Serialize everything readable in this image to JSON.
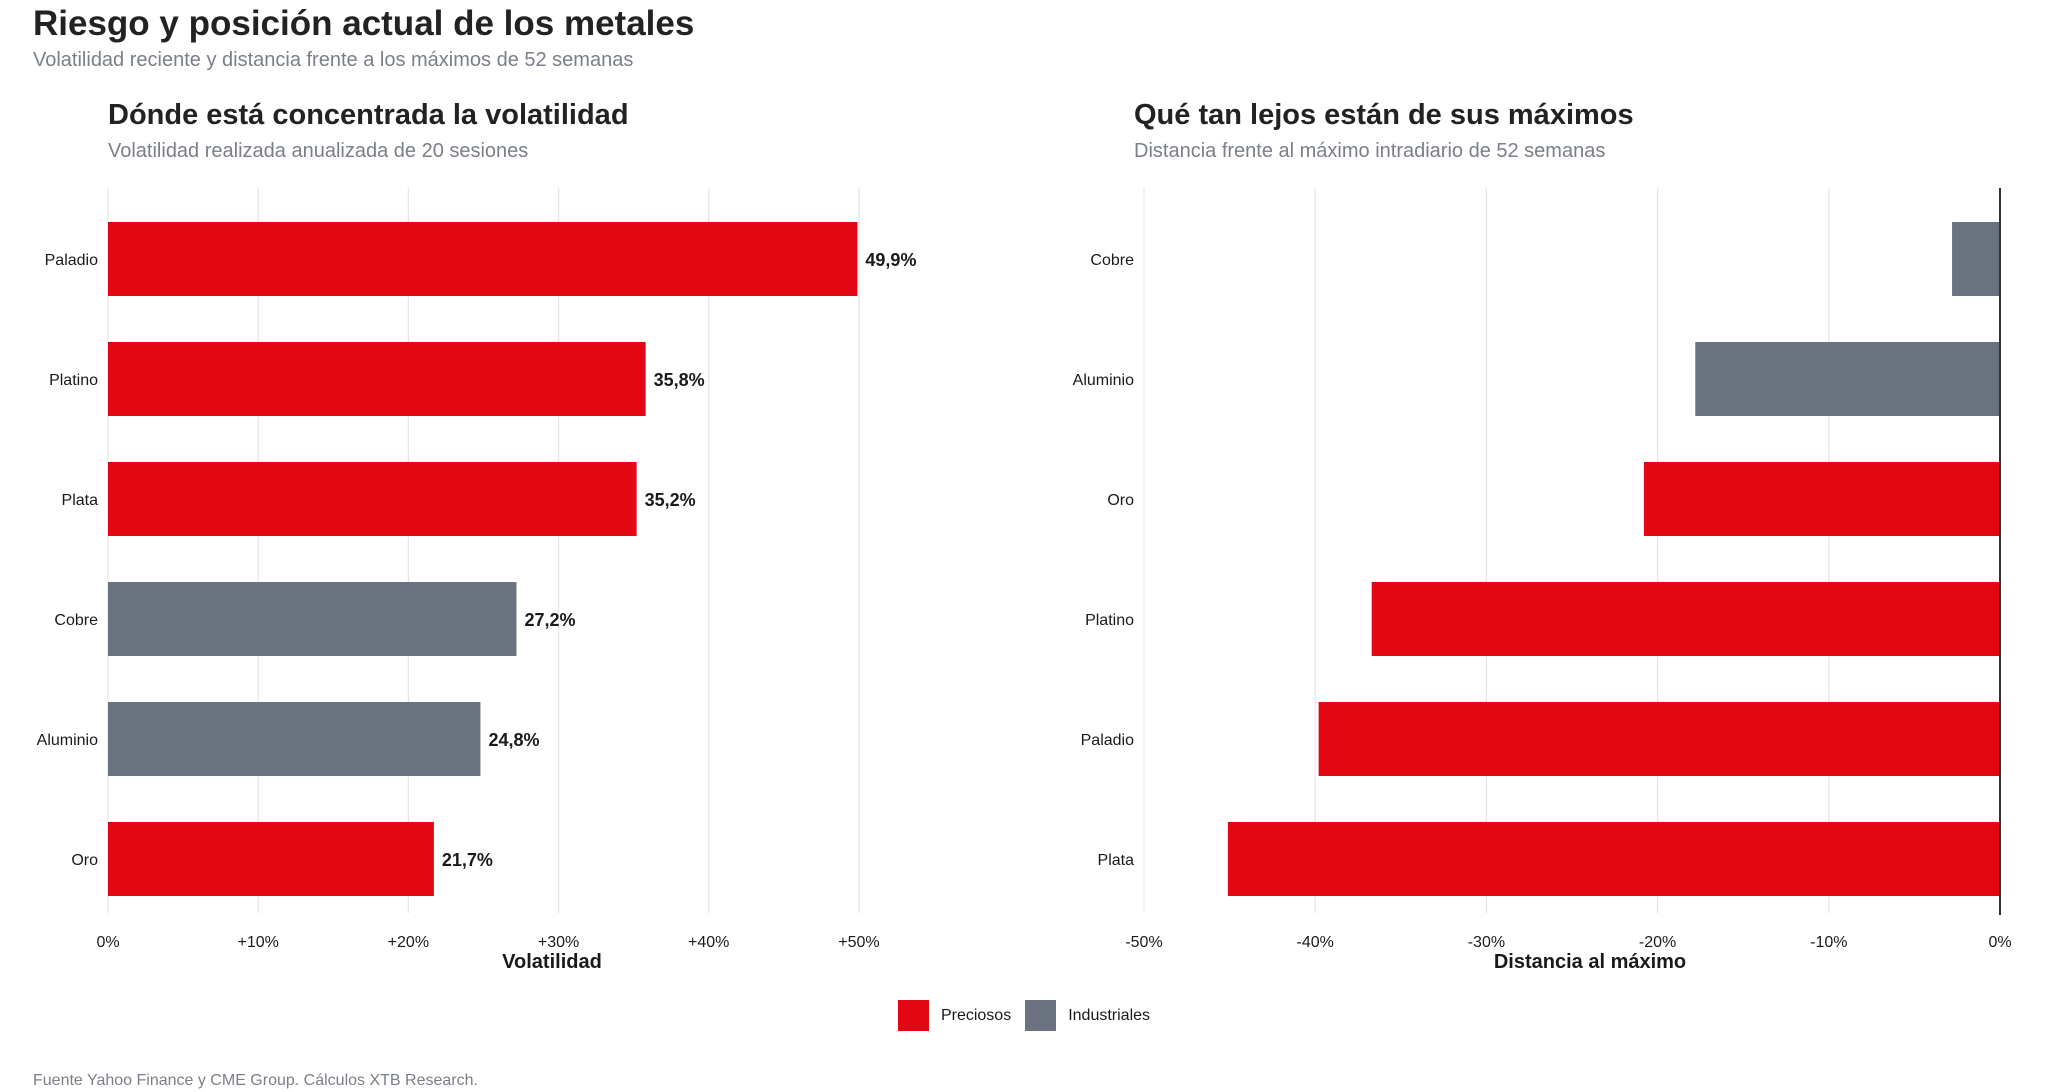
{
  "header": {
    "title": "Riesgo y posición actual de los metales",
    "subtitle": "Volatilidad reciente y distancia frente a los máximos de 52 semanas"
  },
  "colors": {
    "preciosos": "#e30613",
    "industriales": "#6b7280",
    "grid": "#e6e6e6",
    "zero_line": "#333333"
  },
  "legend": {
    "items": [
      {
        "label": "Preciosos",
        "group": "preciosos"
      },
      {
        "label": "Industriales",
        "group": "industriales"
      }
    ]
  },
  "source": "Fuente Yahoo Finance y CME Group. Cálculos XTB Research.",
  "chart_data": [
    {
      "type": "bar",
      "orientation": "horizontal",
      "title": "Dónde está concentrada la volatilidad",
      "subtitle": "Volatilidad realizada anualizada de 20 sesiones",
      "xlabel": "Volatilidad",
      "xlim": [
        0,
        55
      ],
      "ticks": [
        0,
        10,
        20,
        30,
        40,
        50
      ],
      "tick_labels": [
        "0%",
        "+10%",
        "+20%",
        "+30%",
        "+40%",
        "+50%"
      ],
      "categories": [
        "Paladio",
        "Platino",
        "Plata",
        "Cobre",
        "Aluminio",
        "Oro"
      ],
      "values": [
        49.9,
        35.8,
        35.2,
        27.2,
        24.8,
        21.7
      ],
      "data_labels": [
        "49,9%",
        "35,8%",
        "35,2%",
        "27,2%",
        "24,8%",
        "21,7%"
      ],
      "groups": [
        "preciosos",
        "preciosos",
        "preciosos",
        "industriales",
        "industriales",
        "preciosos"
      ],
      "grid": true
    },
    {
      "type": "bar",
      "orientation": "horizontal",
      "title": "Qué tan lejos están de sus máximos",
      "subtitle": "Distancia frente al máximo intradiario de 52 semanas",
      "xlabel": "Distancia al máximo",
      "xlim": [
        -50,
        0
      ],
      "ticks": [
        -50,
        -40,
        -30,
        -20,
        -10,
        0
      ],
      "tick_labels": [
        "-50%",
        "-40%",
        "-30%",
        "-20%",
        "-10%",
        "0%"
      ],
      "categories": [
        "Cobre",
        "Aluminio",
        "Oro",
        "Platino",
        "Paladio",
        "Plata"
      ],
      "values": [
        -2.8,
        -17.8,
        -20.8,
        -36.7,
        -39.8,
        -45.1
      ],
      "groups": [
        "industriales",
        "industriales",
        "preciosos",
        "preciosos",
        "preciosos",
        "preciosos"
      ],
      "grid": true
    }
  ]
}
